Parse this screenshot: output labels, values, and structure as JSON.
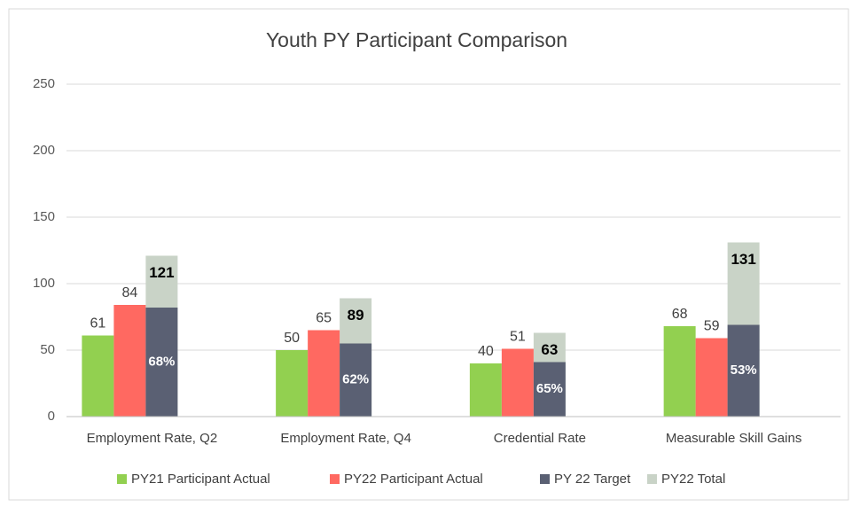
{
  "chart_data": {
    "type": "bar",
    "title": "Youth PY Participant Comparison",
    "categories": [
      "Employment Rate, Q2",
      "Employment Rate, Q4",
      "Credential Rate",
      "Measurable Skill Gains"
    ],
    "series": [
      {
        "name": "PY21 Participant Actual",
        "color": "#92d050",
        "values": [
          61,
          50,
          40,
          68
        ]
      },
      {
        "name": "PY22 Participant Actual",
        "color": "#ff6961",
        "values": [
          84,
          65,
          51,
          59
        ]
      },
      {
        "name": "PY 22 Target",
        "color": "#5a6073",
        "values": [
          82,
          55,
          41,
          69
        ],
        "rate_labels": [
          "68%",
          "62%",
          "65%",
          "53%"
        ]
      },
      {
        "name": "PY22 Total",
        "color": "#c9d3c7",
        "values": [
          121,
          89,
          63,
          131
        ]
      }
    ],
    "ylim": [
      0,
      250
    ],
    "yticks": [
      0,
      50,
      100,
      150,
      200,
      250
    ],
    "grid": true,
    "legend": "bottom"
  }
}
